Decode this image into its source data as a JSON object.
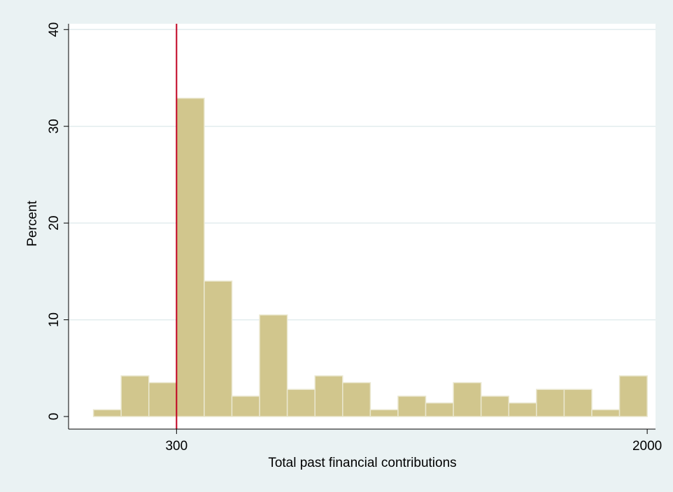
{
  "chart_data": {
    "type": "bar",
    "title": "",
    "xlabel": "Total past financial contributions",
    "ylabel": "Percent",
    "xlim": [
      -90,
      2030
    ],
    "ylim": [
      -1.3,
      40.6
    ],
    "x_ticks": [
      300,
      2000
    ],
    "y_ticks": [
      0,
      10,
      20,
      30,
      40
    ],
    "grid": true,
    "legend": "none",
    "bin_width": 100,
    "bins": [
      {
        "x0": 0,
        "x1": 100,
        "value": 0.7
      },
      {
        "x0": 100,
        "x1": 200,
        "value": 4.2
      },
      {
        "x0": 200,
        "x1": 300,
        "value": 3.5
      },
      {
        "x0": 300,
        "x1": 400,
        "value": 32.9
      },
      {
        "x0": 400,
        "x1": 500,
        "value": 14.0
      },
      {
        "x0": 500,
        "x1": 600,
        "value": 2.1
      },
      {
        "x0": 600,
        "x1": 700,
        "value": 10.5
      },
      {
        "x0": 700,
        "x1": 800,
        "value": 2.8
      },
      {
        "x0": 800,
        "x1": 900,
        "value": 4.2
      },
      {
        "x0": 900,
        "x1": 1000,
        "value": 3.5
      },
      {
        "x0": 1000,
        "x1": 1100,
        "value": 0.7
      },
      {
        "x0": 1100,
        "x1": 1200,
        "value": 2.1
      },
      {
        "x0": 1200,
        "x1": 1300,
        "value": 1.4
      },
      {
        "x0": 1300,
        "x1": 1400,
        "value": 3.5
      },
      {
        "x0": 1400,
        "x1": 1500,
        "value": 2.1
      },
      {
        "x0": 1500,
        "x1": 1600,
        "value": 1.4
      },
      {
        "x0": 1600,
        "x1": 1700,
        "value": 2.8
      },
      {
        "x0": 1700,
        "x1": 1800,
        "value": 2.8
      },
      {
        "x0": 1800,
        "x1": 1900,
        "value": 0.7
      },
      {
        "x0": 1900,
        "x1": 2000,
        "value": 4.2
      }
    ],
    "reference_line": {
      "x": 300
    },
    "colors": {
      "bar_fill": "#d1c68d",
      "bar_stroke": "#eae7cf",
      "reference_line": "#c00020",
      "grid": "#e2ecee",
      "plot_background": "#ffffff",
      "background": "#eaf2f3"
    }
  }
}
